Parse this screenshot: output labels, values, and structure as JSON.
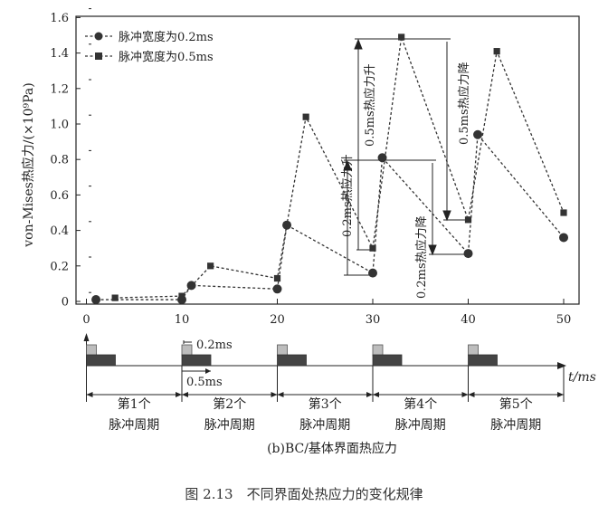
{
  "chart_data": {
    "type": "line",
    "ylabel": "von-Mises热应力/(×10⁹Pa)",
    "xlabel": "t/ms",
    "xlim": [
      0,
      50
    ],
    "ylim": [
      0,
      1.6
    ],
    "xticks": [
      "0",
      "10",
      "20",
      "30",
      "40",
      "50"
    ],
    "yticks": [
      "0",
      "0.2",
      "0.4",
      "0.6",
      "0.8",
      "1.0",
      "1.2",
      "1.4",
      "1.6"
    ],
    "series": [
      {
        "name": "脉冲宽度为0.2ms",
        "marker": "circle",
        "color": "#333333",
        "x": [
          1,
          10,
          11,
          20,
          21,
          30,
          31,
          40,
          41,
          50
        ],
        "y": [
          0.01,
          0.01,
          0.09,
          0.07,
          0.43,
          0.16,
          0.81,
          0.27,
          0.94,
          0.36
        ]
      },
      {
        "name": "脉冲宽度为0.5ms",
        "marker": "square",
        "color": "#333333",
        "x": [
          3,
          10,
          13,
          20,
          23,
          30,
          33,
          40,
          43,
          50
        ],
        "y": [
          0.02,
          0.03,
          0.2,
          0.13,
          1.04,
          0.3,
          1.49,
          0.46,
          1.41,
          0.5
        ]
      }
    ],
    "annotations": {
      "rise_02": "0.2ms热应力升",
      "rise_05": "0.5ms热应力升",
      "fall_02": "0.2ms热应力降",
      "fall_05": "0.5ms热应力降"
    },
    "legend_position": "top-left"
  },
  "timeline": {
    "pulse_starts": [
      0,
      10,
      20,
      30,
      40
    ],
    "width_label_02": "0.2ms",
    "width_label_05": "0.5ms",
    "axis_label": "t/ms",
    "periods": [
      {
        "line1": "第1个",
        "line2": "脉冲周期"
      },
      {
        "line1": "第2个",
        "line2": "脉冲周期"
      },
      {
        "line1": "第3个",
        "line2": "脉冲周期"
      },
      {
        "line1": "第4个",
        "line2": "脉冲周期"
      },
      {
        "line1": "第5个",
        "line2": "脉冲周期"
      }
    ],
    "subtitle": "(b)BC/基体界面热应力"
  },
  "caption": "图 2.13　不同界面处热应力的变化规律"
}
